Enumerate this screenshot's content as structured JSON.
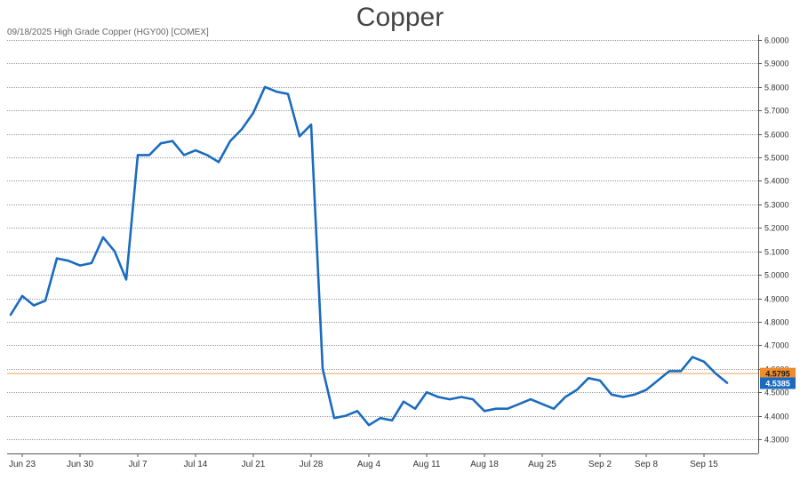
{
  "chart_data": {
    "type": "line",
    "title": "Copper",
    "subtitle": "09/18/2025 High Grade Copper (HGY00) [COMEX]",
    "xlabel": "",
    "ylabel": "",
    "ylim": [
      4.27,
      6.0
    ],
    "y_ticks": [
      "6.0000",
      "5.9000",
      "5.8000",
      "5.7000",
      "5.6000",
      "5.5000",
      "5.4000",
      "5.3000",
      "5.2000",
      "5.1000",
      "5.0000",
      "4.9000",
      "4.8000",
      "4.7000",
      "4.6000",
      "4.5000",
      "4.4000",
      "4.3000"
    ],
    "x_tick_labels": [
      {
        "label": "Jun 23",
        "index": 1
      },
      {
        "label": "Jun 30",
        "index": 6
      },
      {
        "label": "Jul 7",
        "index": 11
      },
      {
        "label": "Jul 14",
        "index": 16
      },
      {
        "label": "Jul 21",
        "index": 21
      },
      {
        "label": "Jul 28",
        "index": 26
      },
      {
        "label": "Aug 4",
        "index": 31
      },
      {
        "label": "Aug 11",
        "index": 36
      },
      {
        "label": "Aug 18",
        "index": 41
      },
      {
        "label": "Aug 25",
        "index": 46
      },
      {
        "label": "Sep 2",
        "index": 51
      },
      {
        "label": "Sep 8",
        "index": 55
      },
      {
        "label": "Sep 15",
        "index": 60
      }
    ],
    "series": [
      {
        "color": "#1a6bbf",
        "values": [
          4.83,
          4.91,
          4.87,
          4.89,
          5.07,
          5.06,
          5.04,
          5.05,
          5.16,
          5.1,
          4.98,
          5.51,
          5.51,
          5.56,
          5.57,
          5.51,
          5.53,
          5.51,
          5.48,
          5.57,
          5.62,
          5.69,
          5.8,
          5.78,
          5.77,
          5.59,
          5.64,
          4.6,
          4.39,
          4.4,
          4.42,
          4.36,
          4.39,
          4.38,
          4.46,
          4.43,
          4.5,
          4.48,
          4.47,
          4.48,
          4.47,
          4.42,
          4.43,
          4.43,
          4.45,
          4.47,
          4.45,
          4.43,
          4.48,
          4.51,
          4.56,
          4.55,
          4.49,
          4.48,
          4.49,
          4.51,
          4.55,
          4.59,
          4.59,
          4.65,
          4.63,
          4.58,
          4.54
        ]
      }
    ],
    "reference_line": {
      "value": 4.5795,
      "label": "4.5795",
      "color": "#f08c2e"
    },
    "last_value": {
      "value": 4.5385,
      "label": "4.5385",
      "color": "#1a6bbf"
    },
    "grid": true,
    "legend": "none"
  }
}
